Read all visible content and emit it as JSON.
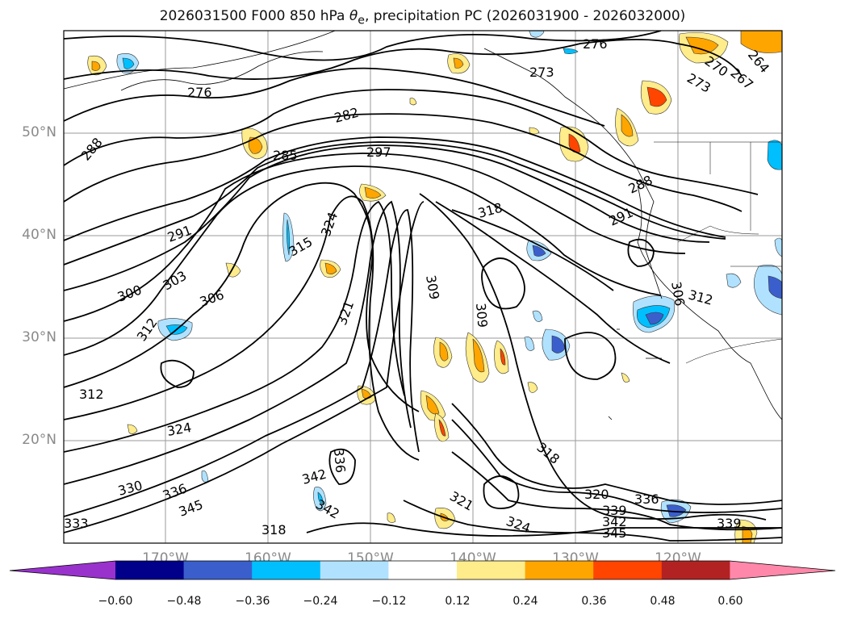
{
  "title": "2026031500 F000 850 hPa θe, precipitation PC (2026031900 - 2026032000)",
  "title_parts": {
    "prefix": "2026031500 F000 850 hPa ",
    "theta": "θ",
    "theta_sub": "e",
    "suffix": ", precipitation PC (2026031900 - 2026032000)"
  },
  "lat_labels": [
    "50°N",
    "40°N",
    "30°N",
    "20°N"
  ],
  "lon_labels": [
    "170°W",
    "160°W",
    "150°W",
    "140°W",
    "130°W",
    "120°W"
  ],
  "contour_labels": [
    "276",
    "273",
    "273",
    "270",
    "264",
    "267",
    "276",
    "282",
    "285",
    "288",
    "297",
    "288",
    "291",
    "291",
    "318",
    "315",
    "324",
    "300",
    "303",
    "306",
    "312",
    "309",
    "309",
    "306",
    "312",
    "321",
    "318",
    "312",
    "324",
    "330",
    "336",
    "345",
    "342",
    "342",
    "336",
    "333",
    "321",
    "318",
    "324",
    "320",
    "336",
    "339",
    "342",
    "345",
    "339"
  ],
  "colorbar": {
    "ticks": [
      "−0.60",
      "−0.48",
      "−0.36",
      "−0.24",
      "−0.12",
      "0.12",
      "0.24",
      "0.36",
      "0.48",
      "0.60"
    ],
    "colors": [
      "#9932CC",
      "#00008B",
      "#3A5FCD",
      "#00BFFF",
      "#B0E2FF",
      "#FFFFFF",
      "#FFEC8B",
      "#FFA500",
      "#FF4500",
      "#B22222",
      "#FF88AA"
    ]
  }
}
